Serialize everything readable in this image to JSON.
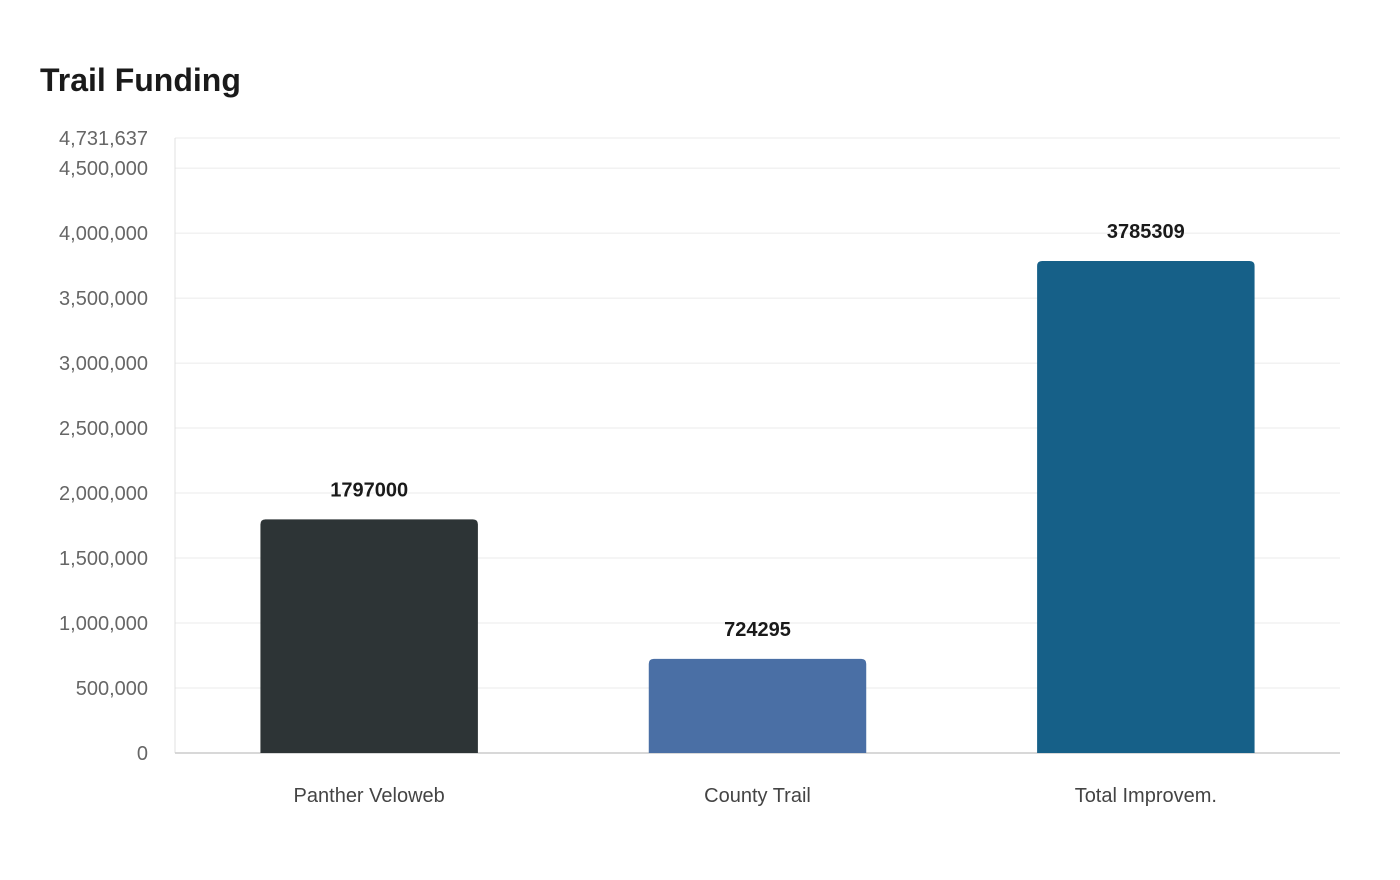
{
  "chart_data": {
    "type": "bar",
    "title": "Trail Funding",
    "xlabel": "",
    "ylabel": "",
    "categories": [
      "Panther Veloweb",
      "County Trail",
      "Total Improvem."
    ],
    "values": [
      1797000,
      724295,
      3785309
    ],
    "value_labels": [
      "1797000",
      "724295",
      "3785309"
    ],
    "colors": [
      "#2d3436",
      "#4a6fa5",
      "#166088"
    ],
    "ylim": [
      0,
      4731637
    ],
    "yticks": [
      0,
      500000,
      1000000,
      1500000,
      2000000,
      2500000,
      3000000,
      3500000,
      4000000,
      4500000,
      4731637
    ],
    "ytick_labels": [
      "0",
      "500,000",
      "1,000,000",
      "1,500,000",
      "2,000,000",
      "2,500,000",
      "3,000,000",
      "3,500,000",
      "4,000,000",
      "4,500,000",
      "4,731,637"
    ],
    "grid": true,
    "legend": "none"
  }
}
